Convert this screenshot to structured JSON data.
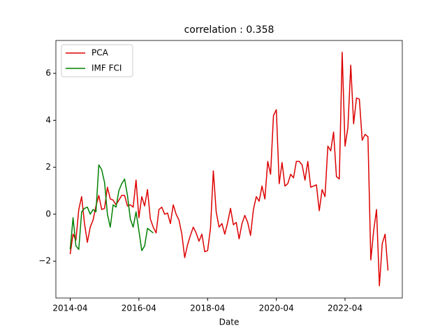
{
  "chart_data": {
    "type": "line",
    "title": "correlation : 0.358",
    "x_label": "Date",
    "x": [
      "2014-04",
      "2014-05",
      "2014-06",
      "2014-07",
      "2014-08",
      "2014-09",
      "2014-10",
      "2014-11",
      "2014-12",
      "2015-01",
      "2015-02",
      "2015-03",
      "2015-04",
      "2015-05",
      "2015-06",
      "2015-07",
      "2015-08",
      "2015-09",
      "2015-10",
      "2015-11",
      "2015-12",
      "2016-01",
      "2016-02",
      "2016-03",
      "2016-04",
      "2016-05",
      "2016-06",
      "2016-07",
      "2016-08",
      "2016-09",
      "2016-10",
      "2016-11",
      "2016-12",
      "2017-01",
      "2017-02",
      "2017-03",
      "2017-04",
      "2017-05",
      "2017-06",
      "2017-07",
      "2017-08",
      "2017-09",
      "2017-10",
      "2017-11",
      "2017-12",
      "2018-01",
      "2018-02",
      "2018-03",
      "2018-04",
      "2018-05",
      "2018-06",
      "2018-07",
      "2018-08",
      "2018-09",
      "2018-10",
      "2018-11",
      "2018-12",
      "2019-01",
      "2019-02",
      "2019-03",
      "2019-04",
      "2019-05",
      "2019-06",
      "2019-07",
      "2019-08",
      "2019-09",
      "2019-10",
      "2019-11",
      "2019-12",
      "2020-01",
      "2020-02",
      "2020-03",
      "2020-04",
      "2020-05",
      "2020-06",
      "2020-07",
      "2020-08",
      "2020-09",
      "2020-10",
      "2020-11",
      "2020-12",
      "2021-01",
      "2021-02",
      "2021-03",
      "2021-04",
      "2021-05",
      "2021-06",
      "2021-07",
      "2021-08",
      "2021-09",
      "2021-10",
      "2021-11",
      "2021-12",
      "2022-01",
      "2022-02",
      "2022-03",
      "2022-04",
      "2022-05",
      "2022-06",
      "2022-07",
      "2022-08",
      "2022-09",
      "2022-10",
      "2022-11",
      "2022-12",
      "2023-01",
      "2023-02",
      "2023-03",
      "2023-04",
      "2023-05",
      "2023-06",
      "2023-07"
    ],
    "series": [
      {
        "name": "PCA",
        "color": "#dd0000",
        "values": [
          -1.7,
          -0.85,
          -1.1,
          0.2,
          0.75,
          -0.4,
          -1.2,
          -0.55,
          -0.25,
          0.35,
          0.8,
          0.2,
          0.25,
          1.15,
          0.65,
          0.6,
          0.4,
          0.6,
          0.8,
          0.8,
          0.35,
          0.4,
          0.3,
          1.45,
          -0.15,
          0.75,
          0.35,
          1.05,
          -0.2,
          -0.55,
          -0.8,
          0.2,
          0.3,
          0.0,
          0.05,
          -0.4,
          0.4,
          0.0,
          -0.25,
          -0.85,
          -1.85,
          -1.3,
          -0.9,
          -0.55,
          -0.8,
          -1.15,
          -0.85,
          -1.6,
          -1.55,
          -0.6,
          1.85,
          0.1,
          -0.55,
          -0.4,
          -0.85,
          -0.35,
          0.25,
          -0.45,
          -0.35,
          -1.05,
          -0.4,
          -0.05,
          -0.35,
          -0.9,
          0.2,
          0.75,
          0.55,
          1.2,
          0.65,
          2.25,
          1.7,
          4.2,
          4.45,
          1.3,
          2.2,
          1.2,
          1.3,
          1.7,
          1.55,
          2.25,
          2.25,
          2.1,
          1.45,
          2.25,
          1.15,
          1.2,
          1.25,
          0.15,
          1.05,
          0.75,
          2.9,
          2.7,
          3.5,
          1.6,
          1.5,
          6.9,
          2.9,
          3.7,
          6.35,
          3.85,
          4.95,
          4.9,
          3.15,
          3.4,
          3.3,
          -1.95,
          -0.7,
          0.2,
          -3.05,
          -1.25,
          -0.85,
          -2.4
        ]
      },
      {
        "name": "IMF FCI",
        "color": "#008000",
        "values": [
          -1.5,
          -0.15,
          -1.35,
          -1.5,
          0.1,
          0.25,
          0.3,
          0.0,
          0.2,
          0.1,
          2.1,
          1.9,
          1.35,
          0.0,
          -0.55,
          0.4,
          0.3,
          1.0,
          1.3,
          1.5,
          0.8,
          -0.2,
          -0.55,
          0.1,
          -0.7,
          -1.55,
          -1.35,
          -0.6,
          -0.7,
          -0.8,
          null,
          null,
          null,
          null,
          null,
          null,
          null,
          null,
          null,
          null,
          null,
          null,
          null,
          null,
          null,
          null,
          null,
          null,
          null,
          null,
          null,
          null,
          null,
          null,
          null,
          null,
          null,
          null,
          null,
          null,
          null,
          null,
          null,
          null,
          null,
          null,
          null,
          null,
          null,
          null,
          null,
          null,
          null,
          null,
          null,
          null,
          null,
          null,
          null,
          null,
          null,
          null,
          null,
          null,
          null,
          null,
          null,
          null,
          null,
          null,
          null,
          null,
          null,
          null,
          null,
          null,
          null,
          null,
          null,
          null,
          null,
          null,
          null,
          null,
          null,
          null,
          null,
          null,
          null,
          null,
          null,
          null
        ]
      }
    ],
    "xlim": [
      "2013-11",
      "2023-12"
    ],
    "xticks": [
      "2014-04",
      "2016-04",
      "2018-04",
      "2020-04",
      "2022-04"
    ],
    "ylim": [
      -3.57,
      7.4
    ],
    "yticks": [
      {
        "value": -2,
        "label": "−2"
      },
      0,
      2,
      4,
      6
    ],
    "legend": "upper left",
    "grid": false
  }
}
